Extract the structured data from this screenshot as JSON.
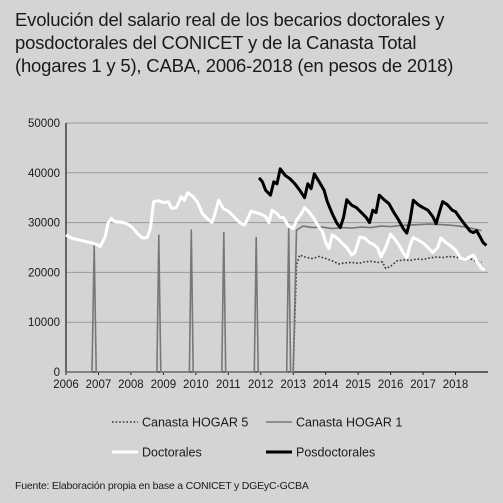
{
  "title": "Evolución del salario real de los becarios doctorales y posdoctorales del CONICET y de la Canasta Total (hogares 1 y 5), CABA, 2006-2018 (en pesos de 2018)",
  "source": "Fuente: Elaboración propia en base a CONICET y DGEyC-GCBA",
  "colors": {
    "background": "#d4d4d4",
    "hogar5": "#333333",
    "hogar1": "#777777",
    "doctorales": "#ffffff",
    "posdoctorales": "#000000",
    "axis": "#1a1a1a"
  },
  "chart_data": {
    "type": "line",
    "xlabel": "",
    "ylabel": "",
    "ylim": [
      0,
      50000
    ],
    "xlim": [
      2006,
      2019
    ],
    "y_ticks": [
      "0",
      "10000",
      "20000",
      "30000",
      "40000",
      "50000"
    ],
    "x_ticks": [
      "2006",
      "2007",
      "2008",
      "2009",
      "2010",
      "2011",
      "2012",
      "2013",
      "2014",
      "2015",
      "2016",
      "2017",
      "2018"
    ],
    "grid": "horizontal",
    "legend_position": "bottom",
    "series": [
      {
        "name": "Canasta HOGAR 5",
        "style": "dotted",
        "points": [
          [
            2013.0,
            0
          ],
          [
            2013.1,
            21500
          ],
          [
            2013.2,
            23500
          ],
          [
            2013.4,
            23000
          ],
          [
            2013.6,
            22800
          ],
          [
            2013.8,
            23200
          ],
          [
            2014.0,
            22800
          ],
          [
            2014.2,
            22300
          ],
          [
            2014.4,
            21700
          ],
          [
            2014.6,
            21900
          ],
          [
            2014.8,
            22000
          ],
          [
            2015.0,
            21800
          ],
          [
            2015.2,
            22100
          ],
          [
            2015.4,
            22200
          ],
          [
            2015.6,
            22000
          ],
          [
            2015.75,
            22100
          ],
          [
            2015.85,
            20800
          ],
          [
            2016.0,
            21200
          ],
          [
            2016.2,
            22300
          ],
          [
            2016.4,
            22500
          ],
          [
            2016.6,
            22400
          ],
          [
            2016.8,
            22700
          ],
          [
            2017.0,
            22600
          ],
          [
            2017.2,
            22900
          ],
          [
            2017.4,
            23100
          ],
          [
            2017.6,
            23000
          ],
          [
            2017.8,
            23200
          ],
          [
            2018.0,
            23100
          ],
          [
            2018.2,
            22800
          ],
          [
            2018.4,
            22900
          ],
          [
            2018.6,
            22300
          ],
          [
            2018.8,
            22000
          ]
        ]
      },
      {
        "name": "Canasta HOGAR 1",
        "style": "solid",
        "points": [
          [
            2006.0,
            0
          ],
          [
            2006.8,
            0
          ],
          [
            2006.87,
            25500
          ],
          [
            2006.93,
            0
          ],
          [
            2007.0,
            0
          ],
          [
            2008.8,
            0
          ],
          [
            2008.86,
            27500
          ],
          [
            2008.92,
            0
          ],
          [
            2009.8,
            0
          ],
          [
            2009.86,
            28500
          ],
          [
            2009.92,
            0
          ],
          [
            2010.8,
            0
          ],
          [
            2010.86,
            28000
          ],
          [
            2010.92,
            0
          ],
          [
            2011.8,
            0
          ],
          [
            2011.86,
            27000
          ],
          [
            2011.92,
            0
          ],
          [
            2012.8,
            0
          ],
          [
            2012.86,
            29000
          ],
          [
            2012.92,
            0
          ],
          [
            2013.0,
            0
          ],
          [
            2013.1,
            28500
          ],
          [
            2013.3,
            29300
          ],
          [
            2013.6,
            29000
          ],
          [
            2013.9,
            29100
          ],
          [
            2014.2,
            28800
          ],
          [
            2014.5,
            29000
          ],
          [
            2014.8,
            28900
          ],
          [
            2015.1,
            29100
          ],
          [
            2015.4,
            29000
          ],
          [
            2015.7,
            29300
          ],
          [
            2016.0,
            29200
          ],
          [
            2016.3,
            29400
          ],
          [
            2016.6,
            29500
          ],
          [
            2016.9,
            29600
          ],
          [
            2017.2,
            29700
          ],
          [
            2017.5,
            29600
          ],
          [
            2017.8,
            29500
          ],
          [
            2018.1,
            29300
          ],
          [
            2018.4,
            29000
          ],
          [
            2018.6,
            28700
          ],
          [
            2018.8,
            28400
          ]
        ]
      },
      {
        "name": "Doctorales",
        "style": "solid",
        "points": [
          [
            2006.0,
            27500
          ],
          [
            2006.2,
            26800
          ],
          [
            2006.4,
            26500
          ],
          [
            2006.6,
            26200
          ],
          [
            2006.8,
            25900
          ],
          [
            2006.95,
            25600
          ],
          [
            2007.05,
            25200
          ],
          [
            2007.2,
            27000
          ],
          [
            2007.3,
            30000
          ],
          [
            2007.4,
            30800
          ],
          [
            2007.5,
            30200
          ],
          [
            2007.7,
            30100
          ],
          [
            2007.9,
            29700
          ],
          [
            2008.05,
            29000
          ],
          [
            2008.2,
            27800
          ],
          [
            2008.35,
            26900
          ],
          [
            2008.5,
            27000
          ],
          [
            2008.6,
            28800
          ],
          [
            2008.7,
            34200
          ],
          [
            2008.85,
            34400
          ],
          [
            2009.0,
            34000
          ],
          [
            2009.15,
            34200
          ],
          [
            2009.25,
            32900
          ],
          [
            2009.4,
            33000
          ],
          [
            2009.55,
            35200
          ],
          [
            2009.65,
            34500
          ],
          [
            2009.75,
            36000
          ],
          [
            2009.9,
            35300
          ],
          [
            2010.05,
            34100
          ],
          [
            2010.2,
            31800
          ],
          [
            2010.35,
            30800
          ],
          [
            2010.5,
            30000
          ],
          [
            2010.6,
            32000
          ],
          [
            2010.7,
            34500
          ],
          [
            2010.85,
            32800
          ],
          [
            2011.0,
            32300
          ],
          [
            2011.2,
            31000
          ],
          [
            2011.35,
            30000
          ],
          [
            2011.5,
            29500
          ],
          [
            2011.6,
            30800
          ],
          [
            2011.7,
            32300
          ],
          [
            2011.85,
            32000
          ],
          [
            2012.0,
            31700
          ],
          [
            2012.15,
            31200
          ],
          [
            2012.25,
            30000
          ],
          [
            2012.35,
            32500
          ],
          [
            2012.5,
            31800
          ],
          [
            2012.6,
            31000
          ],
          [
            2012.7,
            31000
          ],
          [
            2012.85,
            29300
          ],
          [
            2013.0,
            28800
          ],
          [
            2013.1,
            30500
          ],
          [
            2013.25,
            31800
          ],
          [
            2013.35,
            33000
          ],
          [
            2013.5,
            32000
          ],
          [
            2013.65,
            30700
          ],
          [
            2013.8,
            29000
          ],
          [
            2013.9,
            28200
          ],
          [
            2014.0,
            26000
          ],
          [
            2014.1,
            24800
          ],
          [
            2014.2,
            27500
          ],
          [
            2014.35,
            26900
          ],
          [
            2014.5,
            25900
          ],
          [
            2014.65,
            25000
          ],
          [
            2014.8,
            23500
          ],
          [
            2014.9,
            24000
          ],
          [
            2015.05,
            27100
          ],
          [
            2015.2,
            26900
          ],
          [
            2015.35,
            26000
          ],
          [
            2015.5,
            25500
          ],
          [
            2015.6,
            24900
          ],
          [
            2015.7,
            23100
          ],
          [
            2015.85,
            25000
          ],
          [
            2016.0,
            27700
          ],
          [
            2016.15,
            26500
          ],
          [
            2016.3,
            25000
          ],
          [
            2016.4,
            23800
          ],
          [
            2016.5,
            23000
          ],
          [
            2016.6,
            25500
          ],
          [
            2016.7,
            27000
          ],
          [
            2016.85,
            26500
          ],
          [
            2017.0,
            25900
          ],
          [
            2017.15,
            25000
          ],
          [
            2017.3,
            24000
          ],
          [
            2017.45,
            25000
          ],
          [
            2017.55,
            26900
          ],
          [
            2017.7,
            26000
          ],
          [
            2017.85,
            25300
          ],
          [
            2018.0,
            24500
          ],
          [
            2018.15,
            22900
          ],
          [
            2018.3,
            22600
          ],
          [
            2018.4,
            23000
          ],
          [
            2018.55,
            23500
          ],
          [
            2018.65,
            22300
          ],
          [
            2018.8,
            20800
          ],
          [
            2018.9,
            20500
          ]
        ]
      },
      {
        "name": "Posdoctorales",
        "style": "solid",
        "points": [
          [
            2011.95,
            39000
          ],
          [
            2012.05,
            38200
          ],
          [
            2012.15,
            36500
          ],
          [
            2012.3,
            35500
          ],
          [
            2012.4,
            38200
          ],
          [
            2012.5,
            37800
          ],
          [
            2012.6,
            40800
          ],
          [
            2012.75,
            39500
          ],
          [
            2012.9,
            38800
          ],
          [
            2013.05,
            37800
          ],
          [
            2013.2,
            36500
          ],
          [
            2013.35,
            35000
          ],
          [
            2013.45,
            37800
          ],
          [
            2013.55,
            36800
          ],
          [
            2013.65,
            39800
          ],
          [
            2013.8,
            38200
          ],
          [
            2013.95,
            36500
          ],
          [
            2014.05,
            34200
          ],
          [
            2014.2,
            31800
          ],
          [
            2014.35,
            29800
          ],
          [
            2014.45,
            29000
          ],
          [
            2014.55,
            31000
          ],
          [
            2014.65,
            34600
          ],
          [
            2014.8,
            33500
          ],
          [
            2014.95,
            33000
          ],
          [
            2015.1,
            32000
          ],
          [
            2015.25,
            31000
          ],
          [
            2015.35,
            30000
          ],
          [
            2015.45,
            32500
          ],
          [
            2015.55,
            32000
          ],
          [
            2015.65,
            35500
          ],
          [
            2015.8,
            34600
          ],
          [
            2015.95,
            33800
          ],
          [
            2016.1,
            32000
          ],
          [
            2016.25,
            30500
          ],
          [
            2016.4,
            28700
          ],
          [
            2016.5,
            27900
          ],
          [
            2016.6,
            30500
          ],
          [
            2016.7,
            34500
          ],
          [
            2016.85,
            33600
          ],
          [
            2017.0,
            33000
          ],
          [
            2017.15,
            32500
          ],
          [
            2017.3,
            31200
          ],
          [
            2017.4,
            29800
          ],
          [
            2017.5,
            32000
          ],
          [
            2017.6,
            34200
          ],
          [
            2017.75,
            33600
          ],
          [
            2017.9,
            32500
          ],
          [
            2018.0,
            32200
          ],
          [
            2018.15,
            30800
          ],
          [
            2018.3,
            29500
          ],
          [
            2018.45,
            28300
          ],
          [
            2018.55,
            28000
          ],
          [
            2018.65,
            28400
          ],
          [
            2018.75,
            27200
          ],
          [
            2018.85,
            26000
          ],
          [
            2018.95,
            25400
          ]
        ]
      }
    ]
  }
}
